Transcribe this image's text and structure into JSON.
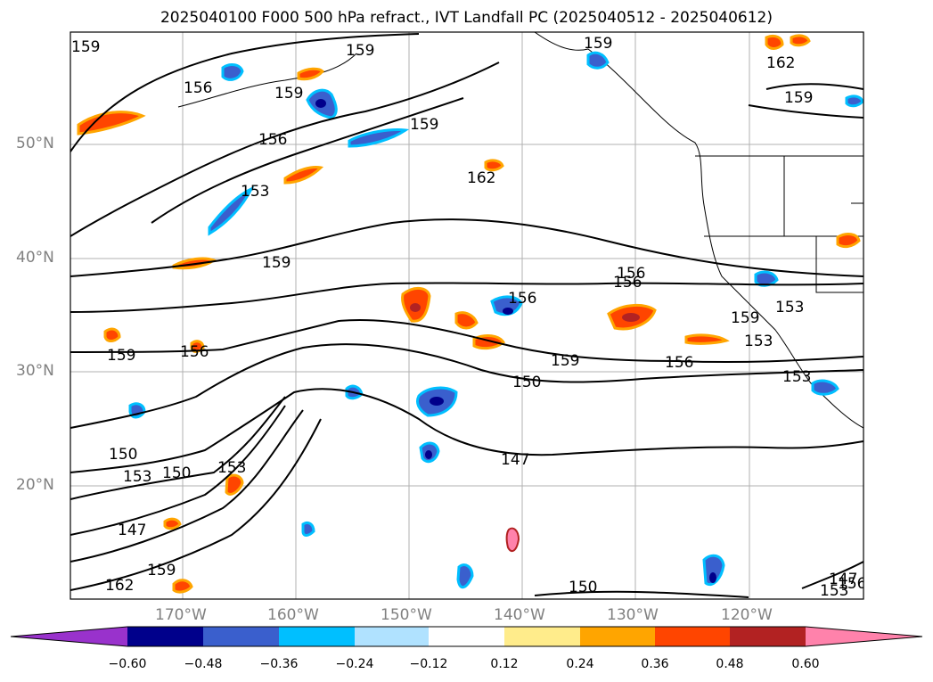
{
  "title": "2025040100 F000 500 hPa refract., IVT Landfall PC (2025040512 - 2025040612)",
  "latitude_labels": [
    "50°N",
    "40°N",
    "30°N",
    "20°N"
  ],
  "longitude_labels": [
    "170°W",
    "160°W",
    "150°W",
    "140°W",
    "130°W",
    "120°W"
  ],
  "contour_labels": [
    "159",
    "159",
    "156",
    "159",
    "156",
    "159",
    "162",
    "159",
    "153",
    "162",
    "159",
    "156",
    "156",
    "159",
    "156",
    "159",
    "159",
    "156",
    "150",
    "153",
    "153",
    "150",
    "147",
    "150",
    "147",
    "150",
    "153",
    "162",
    "159",
    "147",
    "153",
    "156",
    "153",
    "153",
    "159",
    "156"
  ],
  "colorbar": {
    "colors": [
      "#9932cc",
      "#00008b",
      "#3a5fcd",
      "#00bfff",
      "#b0e2ff",
      "#ffffff",
      "#ffec8b",
      "#ffa500",
      "#ff4500",
      "#b22222",
      "#ff82ab"
    ],
    "tick_labels": [
      "−0.60",
      "−0.48",
      "−0.36",
      "−0.24",
      "−0.12",
      "0.12",
      "0.24",
      "0.36",
      "0.48",
      "0.60"
    ]
  }
}
